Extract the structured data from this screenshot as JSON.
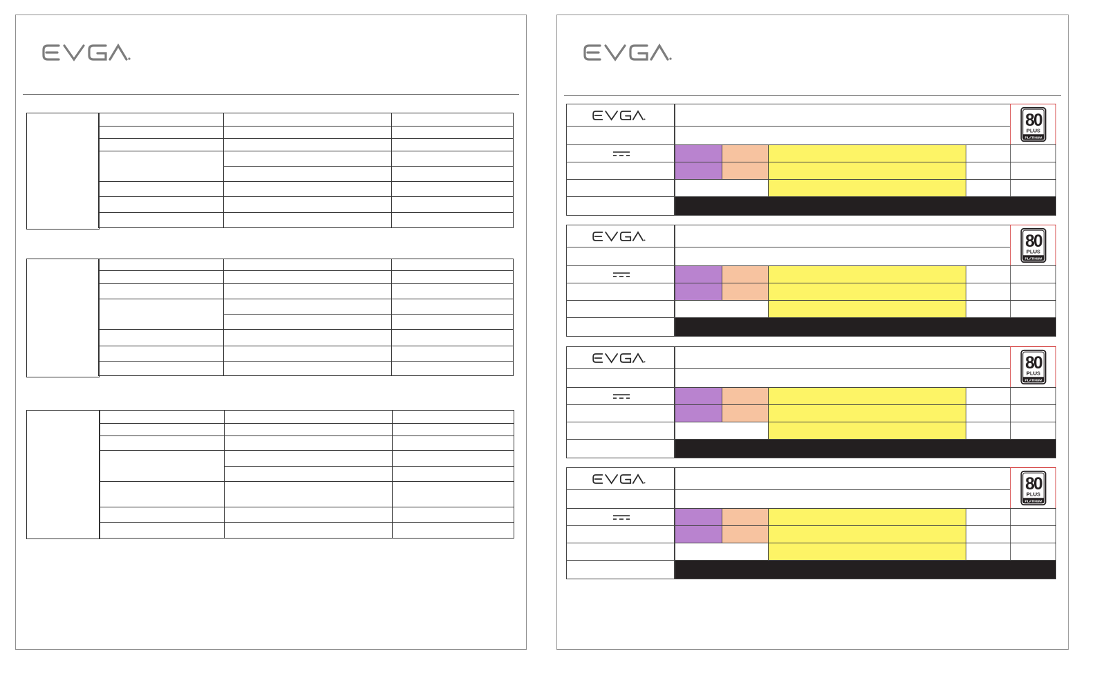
{
  "brand": {
    "logo_name": "EVGA",
    "logo_color": "#7d7d7d",
    "label_logo_color": "#2a2a2a"
  },
  "label_colors": {
    "purple": "#b983cf",
    "peach": "#f7c3a0",
    "yellow": "#fdf466",
    "black": "#231f20",
    "cert_border": "#d23b3b"
  },
  "certification_badge": {
    "line1": "80",
    "line2": "PLUS",
    "line3": "PLATINUM"
  },
  "dc_symbol": "dc-current-icon"
}
